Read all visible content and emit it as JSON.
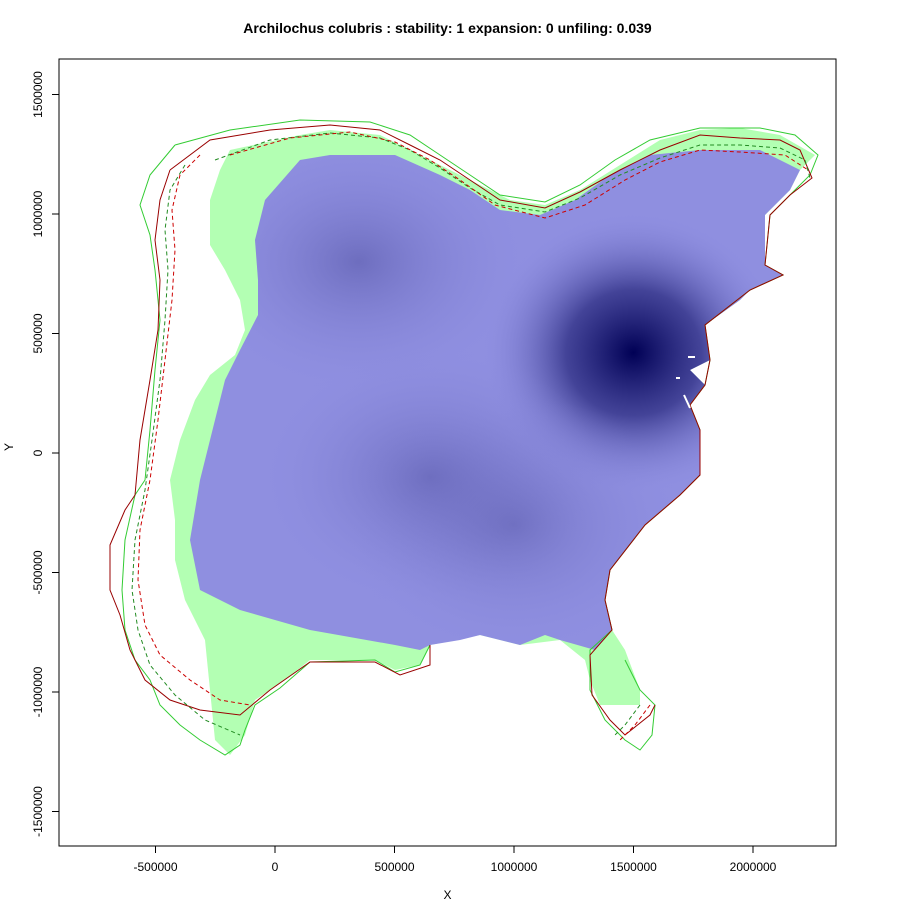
{
  "chart_data": {
    "type": "heatmap",
    "title": "Archilochus colubris : stability: 1 expansion: 0 unfiling: 0.039",
    "xlabel": "X",
    "ylabel": "Y",
    "xlim": [
      -900000,
      2350000
    ],
    "ylim": [
      -1650000,
      1650000
    ],
    "x_ticks": [
      -500000,
      0,
      500000,
      1000000,
      1500000,
      2000000
    ],
    "x_tick_labels": [
      "-500000",
      "0",
      "500000",
      "1000000",
      "1500000",
      "2000000"
    ],
    "y_ticks": [
      -1500000,
      -1000000,
      -500000,
      0,
      500000,
      1000000,
      1500000
    ],
    "y_tick_labels": [
      "-1500000",
      "-1000000",
      "-500000",
      "0",
      "500000",
      "1000000",
      "1500000"
    ],
    "layers": [
      {
        "name": "unfilling range",
        "color": "#b3ffb3"
      },
      {
        "name": "stability density",
        "color_low": "#a6a6f0",
        "color_high": "#000055"
      },
      {
        "name": "native contour",
        "color": "#33cc33",
        "style": "solid"
      },
      {
        "name": "invaded contour",
        "color": "#990000",
        "style": "solid"
      },
      {
        "name": "native quantile",
        "color": "#228b22",
        "style": "dashed"
      },
      {
        "name": "invaded quantile",
        "color": "#cc0000",
        "style": "dashed"
      }
    ],
    "density_peaks": [
      {
        "x": 1500000,
        "y": 420000,
        "weight": 1.0
      },
      {
        "x": 350000,
        "y": 800000,
        "weight": 0.55
      },
      {
        "x": 650000,
        "y": -100000,
        "weight": 0.55
      },
      {
        "x": 1000000,
        "y": -300000,
        "weight": 0.45
      }
    ]
  }
}
